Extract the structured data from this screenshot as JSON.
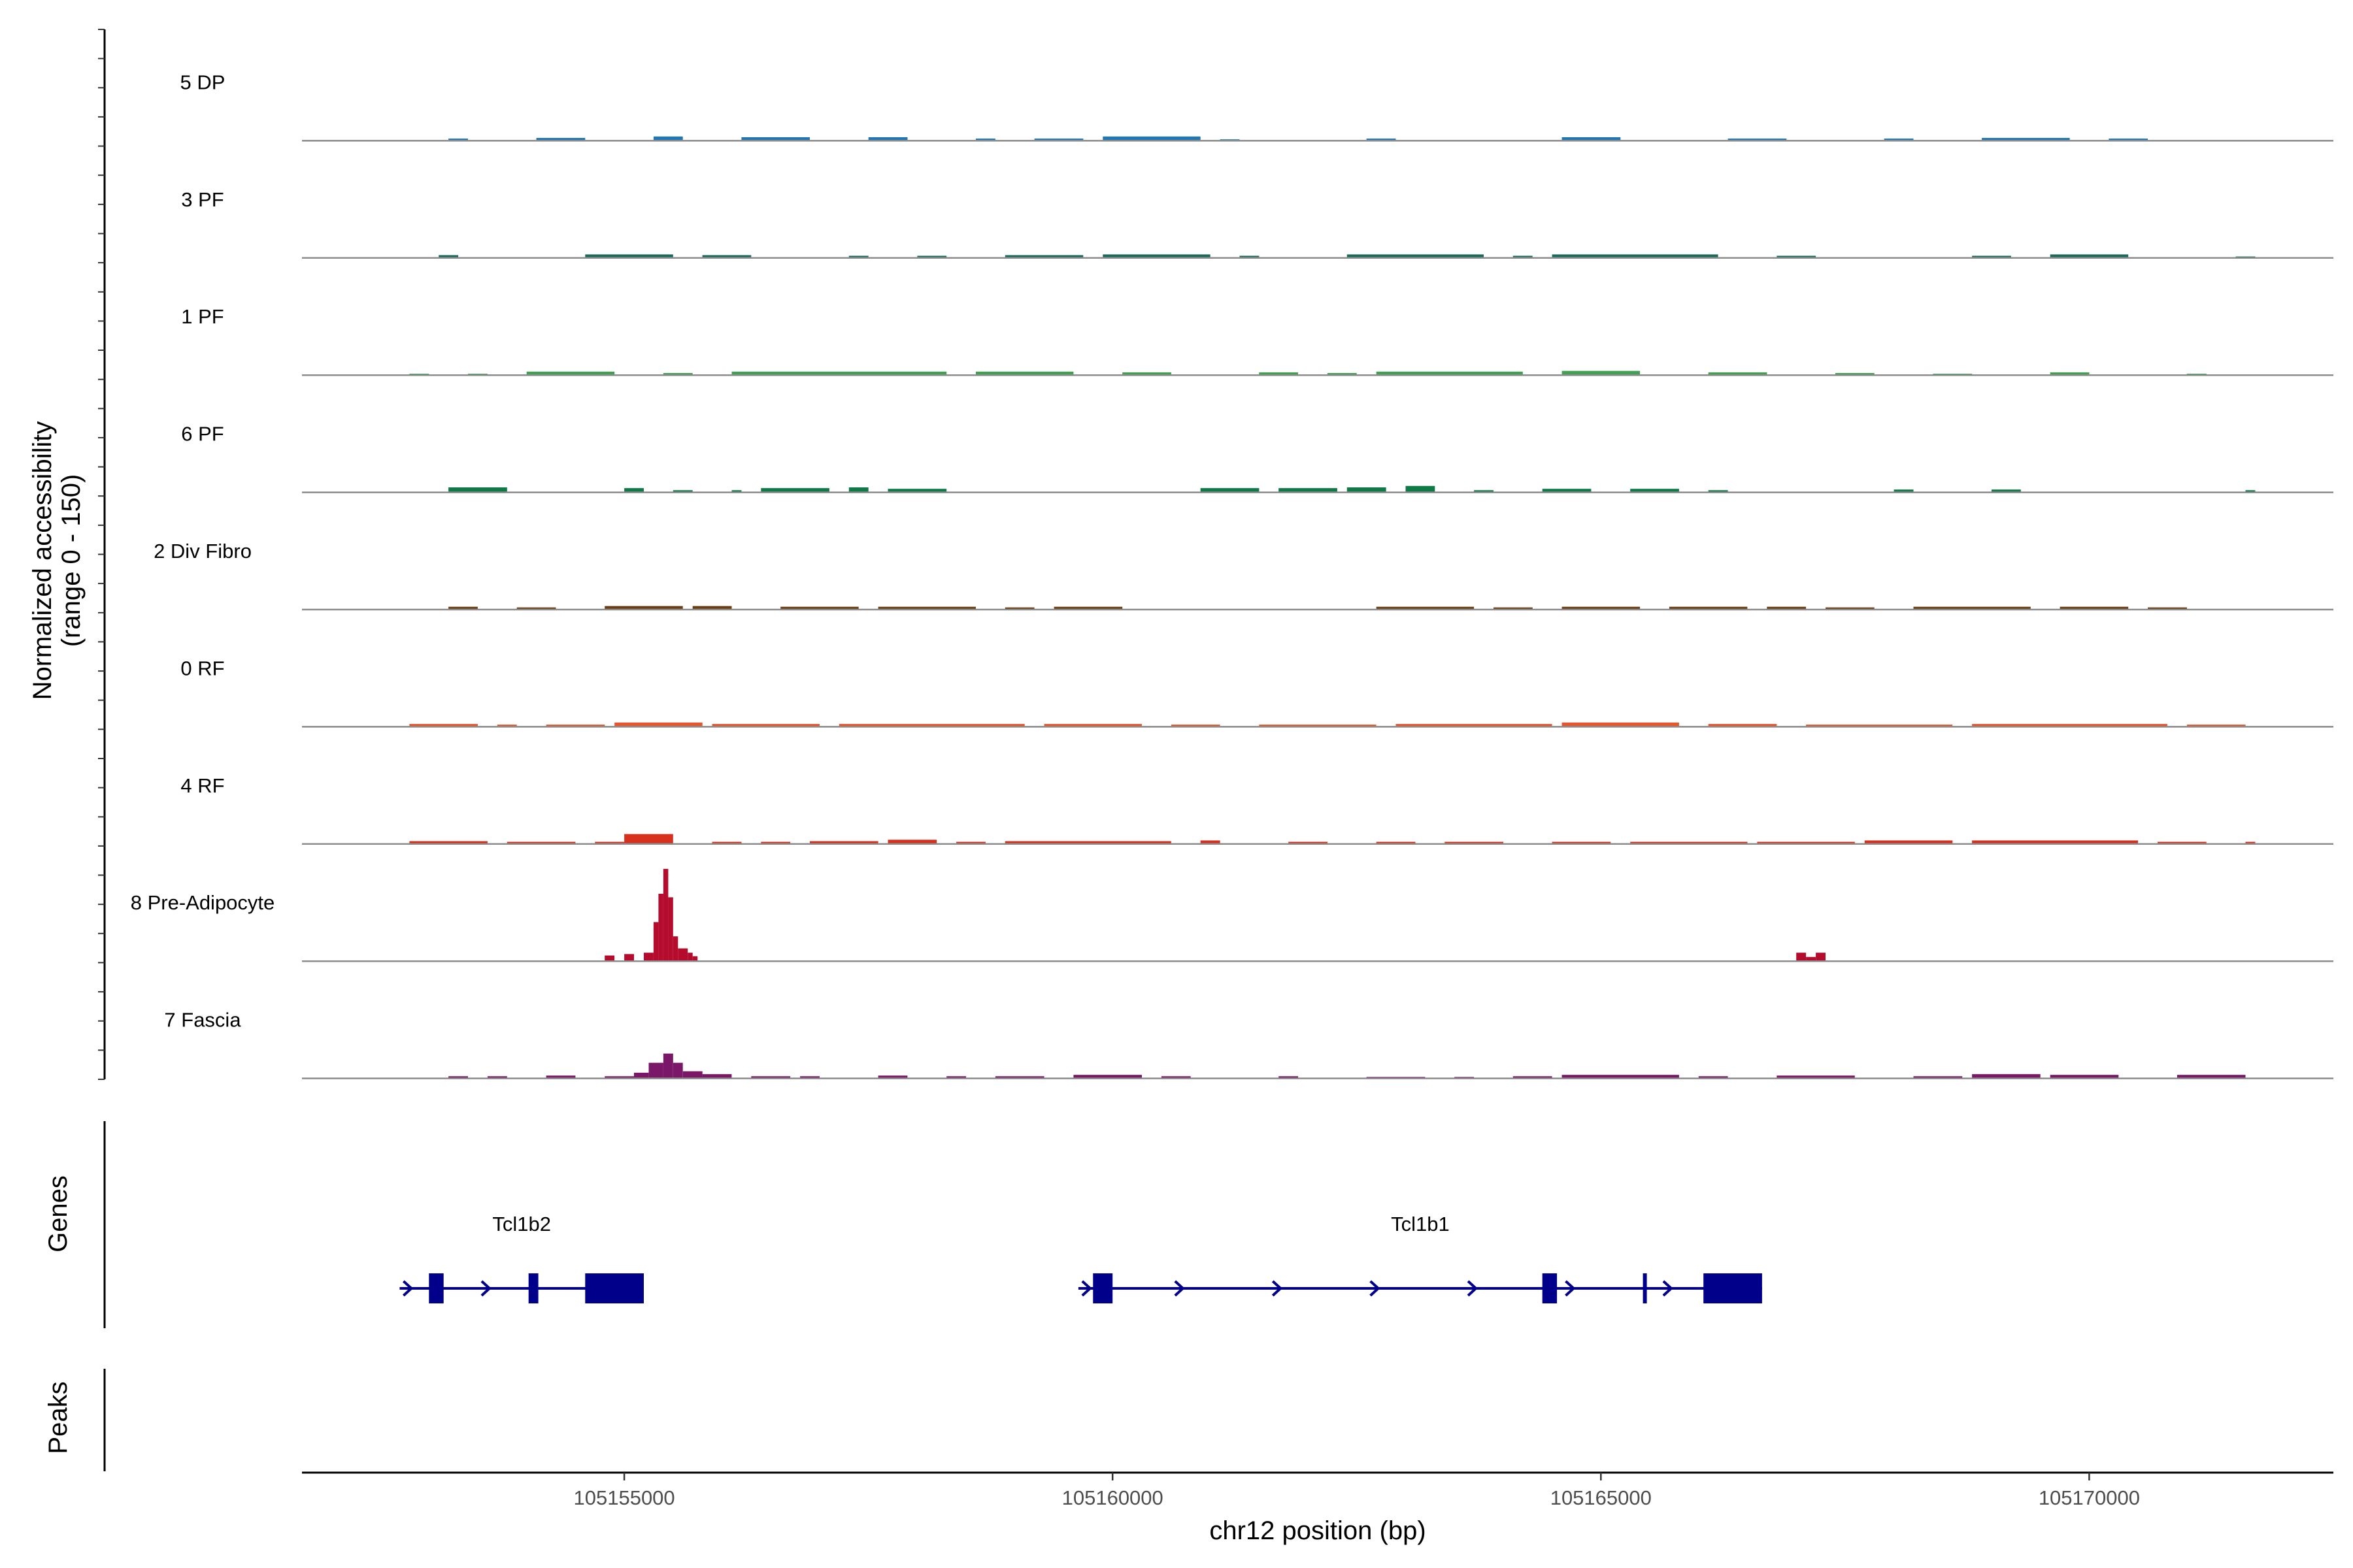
{
  "chart_data": {
    "type": "area",
    "ylabel_line1": "Normalized accessibility",
    "ylabel_line2": "(range 0 - 150)",
    "xlabel": "chr12 position (bp)",
    "xlim": [
      105151700,
      105172500
    ],
    "ylim": [
      0,
      150
    ],
    "grid": false,
    "x_ticks": [
      105155000,
      105160000,
      105165000,
      105170000
    ],
    "x_tick_labels": [
      "105155000",
      "105160000",
      "105165000",
      "105170000"
    ],
    "tracks": [
      {
        "name": "5 DP",
        "color": "#2077b4",
        "regions": [
          [
            105153200,
            105153400,
            3
          ],
          [
            105154100,
            105154600,
            4
          ],
          [
            105155300,
            105155600,
            6
          ],
          [
            105156200,
            105156900,
            5
          ],
          [
            105157500,
            105157900,
            5
          ],
          [
            105158600,
            105158800,
            3
          ],
          [
            105159200,
            105159700,
            3
          ],
          [
            105159900,
            105160900,
            6
          ],
          [
            105161100,
            105161300,
            2
          ],
          [
            105162600,
            105162900,
            3
          ],
          [
            105164600,
            105165200,
            5
          ],
          [
            105166300,
            105166900,
            3
          ],
          [
            105167900,
            105168200,
            3
          ],
          [
            105168900,
            105169800,
            4
          ],
          [
            105170200,
            105170600,
            3
          ]
        ]
      },
      {
        "name": "3 PF",
        "color": "#1a6b5b",
        "regions": [
          [
            105153100,
            105153300,
            4
          ],
          [
            105154600,
            105155500,
            5
          ],
          [
            105155800,
            105156300,
            4
          ],
          [
            105157300,
            105157500,
            3
          ],
          [
            105158000,
            105158300,
            3
          ],
          [
            105158900,
            105159700,
            4
          ],
          [
            105159900,
            105161000,
            5
          ],
          [
            105161300,
            105161500,
            3
          ],
          [
            105162400,
            105163800,
            5
          ],
          [
            105164100,
            105164300,
            3
          ],
          [
            105164500,
            105166200,
            5
          ],
          [
            105166800,
            105167200,
            3
          ],
          [
            105168800,
            105169200,
            3
          ],
          [
            105169600,
            105170400,
            5
          ],
          [
            105171500,
            105171700,
            2
          ]
        ]
      },
      {
        "name": "1 PF",
        "color": "#40a152",
        "regions": [
          [
            105152800,
            105153000,
            2
          ],
          [
            105153400,
            105153600,
            2
          ],
          [
            105154000,
            105154900,
            5
          ],
          [
            105155400,
            105155700,
            3
          ],
          [
            105156100,
            105158300,
            5
          ],
          [
            105158600,
            105159600,
            5
          ],
          [
            105160100,
            105160600,
            4
          ],
          [
            105161500,
            105161900,
            4
          ],
          [
            105162200,
            105162500,
            3
          ],
          [
            105162700,
            105164200,
            5
          ],
          [
            105164600,
            105165400,
            6
          ],
          [
            105166100,
            105166700,
            4
          ],
          [
            105167400,
            105167800,
            3
          ],
          [
            105168400,
            105168800,
            2
          ],
          [
            105169600,
            105170000,
            4
          ],
          [
            105171000,
            105171200,
            2
          ]
        ]
      },
      {
        "name": "6 PF",
        "color": "#0e7a45",
        "regions": [
          [
            105153200,
            105153800,
            7
          ],
          [
            105155000,
            105155200,
            6
          ],
          [
            105155500,
            105155700,
            3
          ],
          [
            105156100,
            105156200,
            3
          ],
          [
            105156400,
            105157100,
            6
          ],
          [
            105157300,
            105157500,
            7
          ],
          [
            105157700,
            105158300,
            5
          ],
          [
            105160900,
            105161500,
            6
          ],
          [
            105161700,
            105162300,
            6
          ],
          [
            105162400,
            105162800,
            7
          ],
          [
            105163000,
            105163300,
            9
          ],
          [
            105163700,
            105163900,
            3
          ],
          [
            105164400,
            105164900,
            5
          ],
          [
            105165300,
            105165800,
            5
          ],
          [
            105166100,
            105166300,
            3
          ],
          [
            105168000,
            105168200,
            4
          ],
          [
            105169000,
            105169300,
            4
          ],
          [
            105171600,
            105171700,
            3
          ]
        ]
      },
      {
        "name": "2 Div Fibro",
        "color": "#6b3d12",
        "regions": [
          [
            105153200,
            105153500,
            4
          ],
          [
            105153900,
            105154300,
            3
          ],
          [
            105154800,
            105155600,
            5
          ],
          [
            105155700,
            105156100,
            5
          ],
          [
            105156600,
            105157400,
            4
          ],
          [
            105157600,
            105158600,
            4
          ],
          [
            105158900,
            105159200,
            3
          ],
          [
            105159400,
            105160100,
            4
          ],
          [
            105162700,
            105163700,
            4
          ],
          [
            105163900,
            105164300,
            3
          ],
          [
            105164600,
            105165400,
            4
          ],
          [
            105165700,
            105166500,
            4
          ],
          [
            105166700,
            105167100,
            4
          ],
          [
            105167300,
            105167800,
            3
          ],
          [
            105168200,
            105169400,
            4
          ],
          [
            105169700,
            105170400,
            4
          ],
          [
            105170600,
            105171000,
            3
          ]
        ]
      },
      {
        "name": "0 RF",
        "color": "#e8552b",
        "regions": [
          [
            105152800,
            105153500,
            4
          ],
          [
            105153700,
            105153900,
            3
          ],
          [
            105154200,
            105154800,
            3
          ],
          [
            105154900,
            105155800,
            6
          ],
          [
            105155900,
            105157000,
            4
          ],
          [
            105157200,
            105159100,
            4
          ],
          [
            105159300,
            105160300,
            4
          ],
          [
            105160600,
            105161100,
            3
          ],
          [
            105161500,
            105162700,
            3
          ],
          [
            105162900,
            105164500,
            4
          ],
          [
            105164600,
            105165800,
            6
          ],
          [
            105166100,
            105166800,
            4
          ],
          [
            105167100,
            105168600,
            3
          ],
          [
            105168800,
            105170800,
            4
          ],
          [
            105171000,
            105171600,
            3
          ]
        ]
      },
      {
        "name": "4 RF",
        "color": "#d7301f",
        "regions": [
          [
            105152800,
            105153600,
            4
          ],
          [
            105153800,
            105154500,
            3
          ],
          [
            105154700,
            105155000,
            3
          ],
          [
            105155000,
            105155500,
            14
          ],
          [
            105155900,
            105156200,
            3
          ],
          [
            105156400,
            105156700,
            3
          ],
          [
            105156900,
            105157600,
            4
          ],
          [
            105157700,
            105158200,
            6
          ],
          [
            105158400,
            105158700,
            3
          ],
          [
            105158900,
            105160600,
            4
          ],
          [
            105160900,
            105161100,
            5
          ],
          [
            105161800,
            105162200,
            3
          ],
          [
            105162700,
            105163100,
            3
          ],
          [
            105163400,
            105164000,
            3
          ],
          [
            105164500,
            105165100,
            3
          ],
          [
            105165300,
            105166500,
            3
          ],
          [
            105166600,
            105167600,
            3
          ],
          [
            105167700,
            105168600,
            5
          ],
          [
            105168800,
            105170500,
            5
          ],
          [
            105170700,
            105171200,
            3
          ],
          [
            105171600,
            105171700,
            3
          ]
        ]
      },
      {
        "name": "8 Pre-Adipocyte",
        "color": "#b50c2d",
        "regions": [
          [
            105154800,
            105154900,
            8
          ],
          [
            105155000,
            105155100,
            10
          ],
          [
            105155200,
            105155300,
            12
          ],
          [
            105155300,
            105155350,
            55
          ],
          [
            105155350,
            105155400,
            95
          ],
          [
            105155400,
            105155450,
            130
          ],
          [
            105155450,
            105155500,
            90
          ],
          [
            105155500,
            105155550,
            35
          ],
          [
            105155550,
            105155650,
            18
          ],
          [
            105155650,
            105155700,
            12
          ],
          [
            105155700,
            105155750,
            7
          ],
          [
            105167000,
            105167100,
            12
          ],
          [
            105167100,
            105167200,
            6
          ],
          [
            105167200,
            105167300,
            12
          ]
        ]
      },
      {
        "name": "7 Fascia",
        "color": "#7a1769",
        "regions": [
          [
            105153200,
            105153400,
            3
          ],
          [
            105153600,
            105153800,
            3
          ],
          [
            105154200,
            105154500,
            4
          ],
          [
            105154800,
            105155100,
            3
          ],
          [
            105155100,
            105155250,
            8
          ],
          [
            105155250,
            105155400,
            22
          ],
          [
            105155400,
            105155500,
            35
          ],
          [
            105155500,
            105155600,
            22
          ],
          [
            105155600,
            105155800,
            10
          ],
          [
            105155800,
            105156100,
            6
          ],
          [
            105156300,
            105156700,
            3
          ],
          [
            105156800,
            105157000,
            3
          ],
          [
            105157600,
            105157900,
            4
          ],
          [
            105158300,
            105158500,
            3
          ],
          [
            105158800,
            105159300,
            3
          ],
          [
            105159600,
            105160300,
            5
          ],
          [
            105160500,
            105160800,
            3
          ],
          [
            105161700,
            105161900,
            3
          ],
          [
            105162600,
            105163200,
            2
          ],
          [
            105163500,
            105163700,
            2
          ],
          [
            105164100,
            105164500,
            3
          ],
          [
            105164600,
            105165800,
            5
          ],
          [
            105166000,
            105166300,
            3
          ],
          [
            105166800,
            105167600,
            4
          ],
          [
            105168200,
            105168700,
            3
          ],
          [
            105168800,
            105169500,
            6
          ],
          [
            105169600,
            105170300,
            5
          ],
          [
            105170900,
            105171600,
            5
          ]
        ]
      }
    ],
    "genes_label": "Genes",
    "peaks_label": "Peaks",
    "genes": [
      {
        "name": "Tcl1b2",
        "color": "#00008b",
        "start": 105152700,
        "end": 105155200,
        "exons": [
          [
            105153000,
            105153150
          ],
          [
            105154020,
            105154120
          ],
          [
            105154600,
            105155200
          ]
        ],
        "arrows": [
          105152800,
          105153600
        ]
      },
      {
        "name": "Tcl1b1",
        "color": "#00008b",
        "start": 105159650,
        "end": 105166650,
        "exons": [
          [
            105159800,
            105160000
          ],
          [
            105164400,
            105164550
          ],
          [
            105165430,
            105165470
          ],
          [
            105166050,
            105166650
          ]
        ],
        "arrows": [
          105159750,
          105160700,
          105161700,
          105162700,
          105163700,
          105164700,
          105165700
        ]
      }
    ]
  }
}
